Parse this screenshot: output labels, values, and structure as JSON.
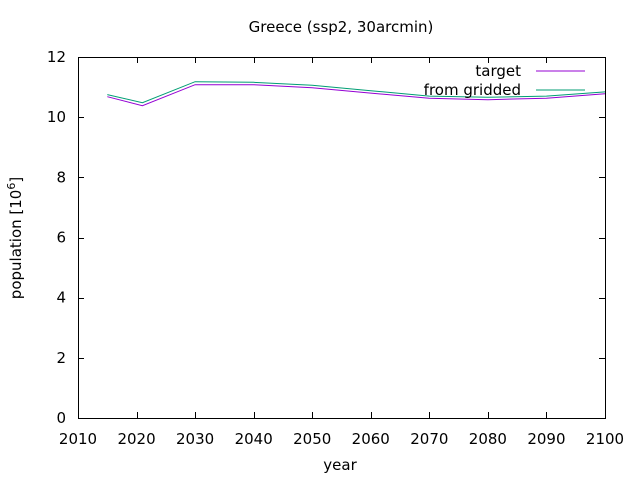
{
  "chart_data": {
    "type": "line",
    "title": "Greece (ssp2, 30arcmin)",
    "xlabel": "year",
    "ylabel_base": "population [10",
    "ylabel_exp": "6",
    "ylabel_close": "]",
    "xlim": [
      2010,
      2100
    ],
    "ylim": [
      0,
      12
    ],
    "xticks": [
      2010,
      2020,
      2030,
      2040,
      2050,
      2060,
      2070,
      2080,
      2090,
      2100
    ],
    "yticks": [
      0,
      2,
      4,
      6,
      8,
      10,
      12
    ],
    "grid": false,
    "legend_position": "top-right",
    "x": [
      2015,
      2021,
      2030,
      2040,
      2050,
      2060,
      2070,
      2080,
      2090,
      2100
    ],
    "series": [
      {
        "name": "target",
        "color": "#9400d3",
        "values": [
          10.68,
          10.38,
          11.08,
          11.08,
          10.98,
          10.8,
          10.63,
          10.58,
          10.63,
          10.78
        ]
      },
      {
        "name": "from gridded",
        "color": "#009e73",
        "values": [
          10.75,
          10.48,
          11.18,
          11.16,
          11.06,
          10.88,
          10.7,
          10.66,
          10.7,
          10.84
        ]
      }
    ]
  }
}
